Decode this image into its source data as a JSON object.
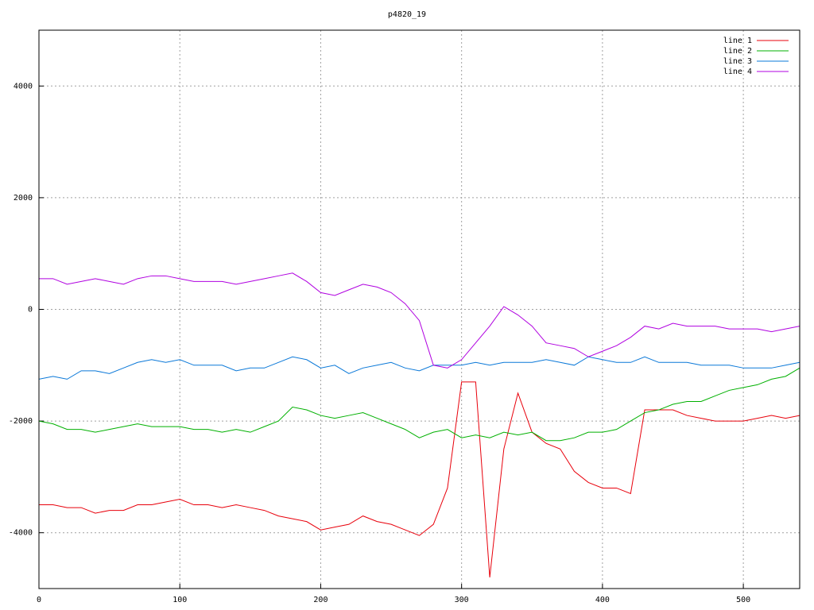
{
  "chart_data": {
    "type": "line",
    "title": "p4820_19",
    "x": [
      0,
      10,
      20,
      30,
      40,
      50,
      60,
      70,
      80,
      90,
      100,
      110,
      120,
      130,
      140,
      150,
      160,
      170,
      180,
      190,
      200,
      210,
      220,
      230,
      240,
      250,
      260,
      270,
      280,
      290,
      300,
      310,
      320,
      330,
      340,
      350,
      360,
      370,
      380,
      390,
      400,
      410,
      420,
      430,
      440,
      450,
      460,
      470,
      480,
      490,
      500,
      510,
      520,
      530,
      540
    ],
    "series": [
      {
        "name": "line 1",
        "color": "#e8000b",
        "values": [
          -3500,
          -3500,
          -3550,
          -3550,
          -3650,
          -3600,
          -3600,
          -3500,
          -3500,
          -3450,
          -3400,
          -3500,
          -3500,
          -3550,
          -3500,
          -3550,
          -3600,
          -3700,
          -3750,
          -3800,
          -3950,
          -3900,
          -3850,
          -3700,
          -3800,
          -3850,
          -3950,
          -4050,
          -3850,
          -3200,
          -1300,
          -1300,
          -4800,
          -2500,
          -1500,
          -2200,
          -2400,
          -2500,
          -2900,
          -3100,
          -3200,
          -3200,
          -3300,
          -1800,
          -1800,
          -1800,
          -1900,
          -1950,
          -2000,
          -2000,
          -2000,
          -1950,
          -1900,
          -1950,
          -1900
        ]
      },
      {
        "name": "line 2",
        "color": "#00b000",
        "values": [
          -2000,
          -2050,
          -2150,
          -2150,
          -2200,
          -2150,
          -2100,
          -2050,
          -2100,
          -2100,
          -2100,
          -2150,
          -2150,
          -2200,
          -2150,
          -2200,
          -2100,
          -2000,
          -1750,
          -1800,
          -1900,
          -1950,
          -1900,
          -1850,
          -1950,
          -2050,
          -2150,
          -2300,
          -2200,
          -2150,
          -2300,
          -2250,
          -2300,
          -2200,
          -2250,
          -2200,
          -2350,
          -2350,
          -2300,
          -2200,
          -2200,
          -2150,
          -2000,
          -1850,
          -1800,
          -1700,
          -1650,
          -1650,
          -1550,
          -1450,
          -1400,
          -1350,
          -1250,
          -1200,
          -1050
        ]
      },
      {
        "name": "line 3",
        "color": "#0a78d8",
        "values": [
          -1250,
          -1200,
          -1250,
          -1100,
          -1100,
          -1150,
          -1050,
          -950,
          -900,
          -950,
          -900,
          -1000,
          -1000,
          -1000,
          -1100,
          -1050,
          -1050,
          -950,
          -850,
          -900,
          -1050,
          -1000,
          -1150,
          -1050,
          -1000,
          -950,
          -1050,
          -1100,
          -1000,
          -1000,
          -1000,
          -950,
          -1000,
          -950,
          -950,
          -950,
          -900,
          -950,
          -1000,
          -850,
          -900,
          -950,
          -950,
          -850,
          -950,
          -950,
          -950,
          -1000,
          -1000,
          -1000,
          -1050,
          -1050,
          -1050,
          -1000,
          -950
        ]
      },
      {
        "name": "line 4",
        "color": "#b000e0",
        "values": [
          550,
          550,
          450,
          500,
          550,
          500,
          450,
          550,
          600,
          600,
          550,
          500,
          500,
          500,
          450,
          500,
          550,
          600,
          650,
          500,
          300,
          250,
          350,
          450,
          400,
          300,
          100,
          -200,
          -1000,
          -1050,
          -900,
          -600,
          -300,
          50,
          -100,
          -300,
          -600,
          -650,
          -700,
          -850,
          -750,
          -650,
          -500,
          -300,
          -350,
          -250,
          -300,
          -300,
          -300,
          -350,
          -350,
          -350,
          -400,
          -350,
          -300
        ]
      }
    ],
    "xlim": [
      0,
      540
    ],
    "xticks": [
      0,
      100,
      200,
      300,
      400,
      500
    ],
    "ylim": [
      -5000,
      5000
    ],
    "yticks": [
      -4000,
      -2000,
      0,
      2000,
      4000
    ],
    "grid": true,
    "legend": "top-right"
  }
}
